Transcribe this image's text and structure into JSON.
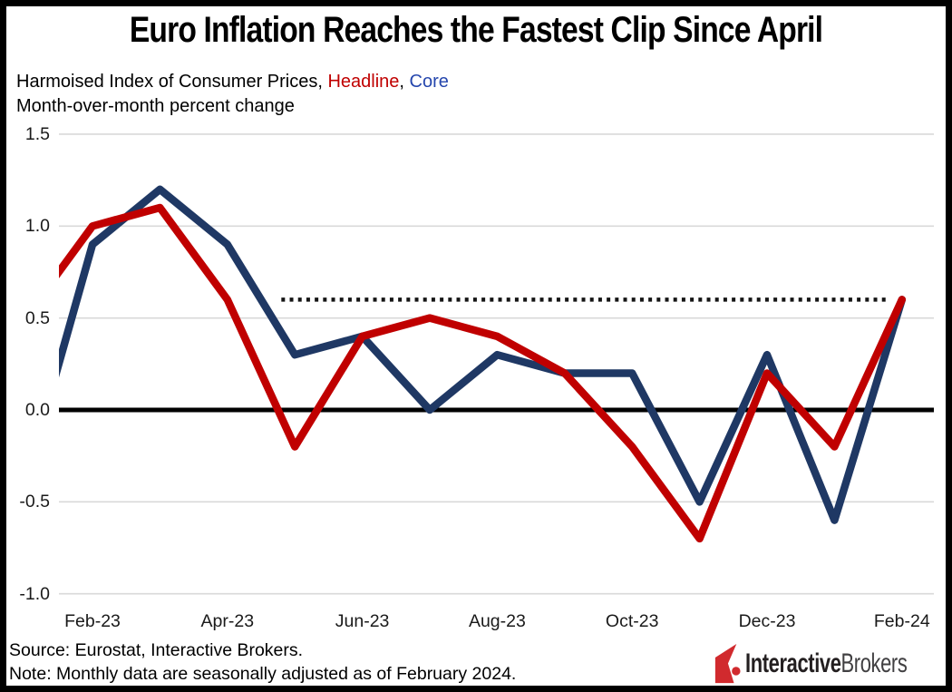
{
  "title": "Euro Inflation Reaches the Fastest Clip Since April",
  "subtitle": {
    "prefix": "Harmoised Index of Consumer Prices, ",
    "series1_label": "Headline",
    "separator": ", ",
    "series2_label": "Core",
    "line2": "Month-over-month percent change"
  },
  "footer": {
    "source": "Source: Eurostat, Interactive Brokers.",
    "note": "Note: Monthly data are seasonally adjusted as of February 2024."
  },
  "logo": {
    "mark": "interactive-brokers-mark",
    "mark_color": "#d12a2e",
    "brand_bold": "Interactive",
    "brand_regular": "Brokers"
  },
  "colors": {
    "headline": "#c00000",
    "core": "#1f3864",
    "headline_label": "#c00000",
    "core_label": "#2546ad",
    "gridline": "#d9d9d9",
    "zero_line": "#000000",
    "reference_dotted": "#141414",
    "axis_text": "#1a1a1a"
  },
  "chart_data": {
    "type": "line",
    "x": [
      "Jan-23",
      "Feb-23",
      "Mar-23",
      "Apr-23",
      "May-23",
      "Jun-23",
      "Jul-23",
      "Aug-23",
      "Sep-23",
      "Oct-23",
      "Nov-23",
      "Dec-23",
      "Jan-24",
      "Feb-24"
    ],
    "series": [
      {
        "name": "Headline",
        "color": "#c00000",
        "values": [
          0.5,
          1.0,
          1.1,
          0.6,
          -0.2,
          0.4,
          0.5,
          0.4,
          0.2,
          -0.2,
          -0.7,
          0.2,
          -0.2,
          0.6
        ]
      },
      {
        "name": "Core",
        "color": "#1f3864",
        "values": [
          -0.4,
          0.9,
          1.2,
          0.9,
          0.3,
          0.4,
          0.0,
          0.3,
          0.2,
          0.2,
          -0.5,
          0.3,
          -0.6,
          0.6
        ]
      }
    ],
    "y_ticks": [
      1.5,
      1.0,
      0.5,
      0.0,
      -0.5,
      -1.0
    ],
    "y_tick_labels": [
      "1.5",
      "1.0",
      "0.5",
      "0.0",
      "-0.5",
      "-1.0"
    ],
    "ylim": [
      -1.0,
      1.5
    ],
    "x_tick_labels": [
      "Feb-23",
      "Apr-23",
      "Jun-23",
      "Aug-23",
      "Oct-23",
      "Dec-23",
      "Feb-24"
    ],
    "x_tick_indices": [
      1,
      3,
      5,
      7,
      9,
      11,
      13
    ],
    "x_axis_clip_start_index": 0.5,
    "reference_line": {
      "value": 0.6,
      "style": "dotted",
      "x_start_index": 3.8,
      "x_end_index": 12.76
    },
    "zero_line": true,
    "gridlines": true,
    "legend_position": "in-subtitle"
  }
}
